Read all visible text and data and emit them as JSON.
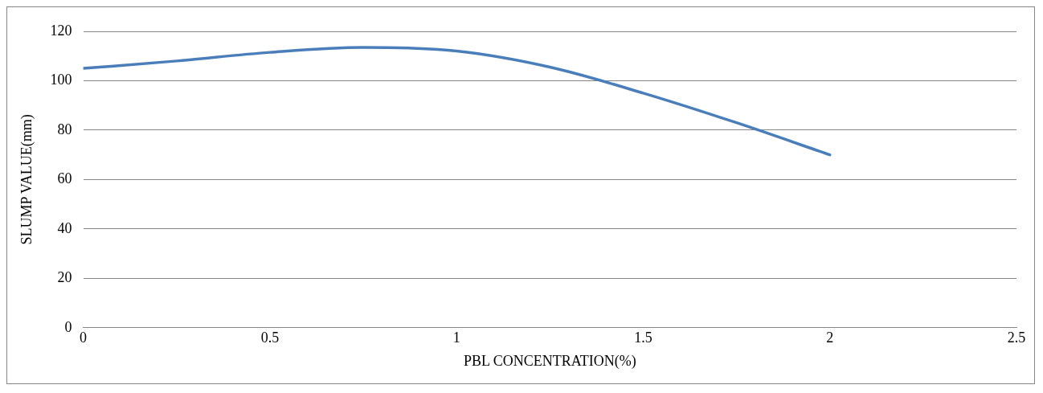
{
  "chart_data": {
    "type": "line",
    "xlabel": "PBL CONCENTRATION(%)",
    "ylabel": "SLUMP VALUE(mm)",
    "x": [
      0,
      0.25,
      0.5,
      0.75,
      1,
      1.25,
      1.5,
      1.75,
      2
    ],
    "series": [
      {
        "color": "#4a7ebb",
        "values": [
          105,
          108,
          111.5,
          113.5,
          112,
          105.5,
          95,
          83,
          70
        ]
      }
    ],
    "xlim": [
      0,
      2.5
    ],
    "xticks": [
      0,
      0.5,
      1,
      1.5,
      2,
      2.5
    ],
    "ylim": [
      0,
      120
    ],
    "yticks": [
      0,
      20,
      40,
      60,
      80,
      100,
      120
    ],
    "grid": "y",
    "legend": false,
    "marker": "none",
    "line_style": "solid"
  }
}
